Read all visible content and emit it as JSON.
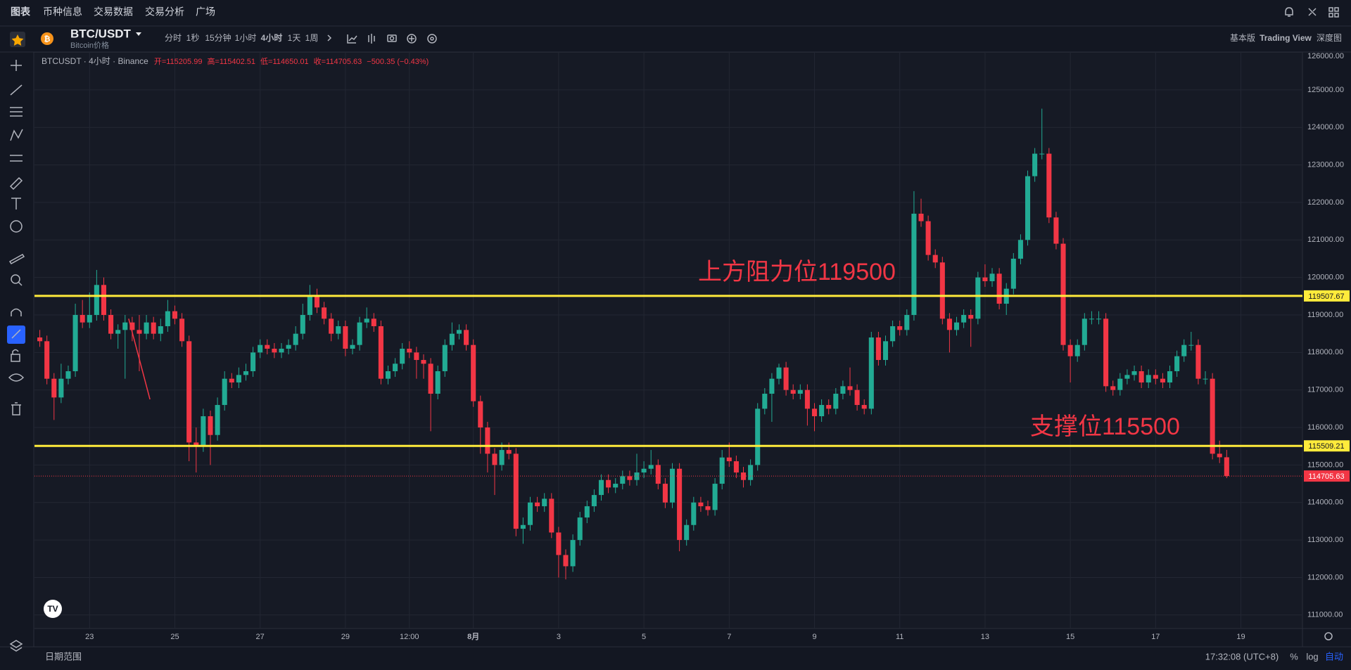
{
  "top_nav": [
    "图表",
    "币种信息",
    "交易数据",
    "交易分析",
    "广场"
  ],
  "symbol": "BTC/USDT",
  "symbol_subtitle": "Bitcoin价格",
  "intervals": [
    "分时",
    "1秒",
    "15分钟",
    "1小时",
    "4小时",
    "1天",
    "1周"
  ],
  "view_modes": [
    "基本版",
    "Trading View",
    "深度图"
  ],
  "legend": {
    "symbol_line": "BTCUSDT · 4小时 · Binance",
    "ohlc": [
      "开=115205.99",
      "高=115402.51",
      "低=114650.01",
      "收=114705.63"
    ],
    "change": "−500.35 (−0.43%)"
  },
  "bottom_bar": {
    "date_range": "日期范围",
    "clock": "17:32:08 (UTC+8)",
    "buttons": [
      "%",
      "log",
      "自动"
    ]
  },
  "chart_data": {
    "type": "candlestick",
    "up_color": "#22ab94",
    "down_color": "#f23645",
    "grid": true,
    "xlim": [
      -0.75,
      177.66
    ],
    "xticks": [
      {
        "value": 7,
        "label": "23"
      },
      {
        "value": 19,
        "label": "25"
      },
      {
        "value": 31,
        "label": "27"
      },
      {
        "value": 43,
        "label": "29"
      },
      {
        "value": 52,
        "label": "12:00"
      },
      {
        "value": 61,
        "label": "8月"
      },
      {
        "value": 73,
        "label": "3"
      },
      {
        "value": 85,
        "label": "5"
      },
      {
        "value": 97,
        "label": "7"
      },
      {
        "value": 109,
        "label": "9"
      },
      {
        "value": 121,
        "label": "11"
      },
      {
        "value": 133,
        "label": "13"
      },
      {
        "value": 145,
        "label": "15"
      },
      {
        "value": 157,
        "label": "17"
      },
      {
        "value": 169,
        "label": "19"
      }
    ],
    "ylim": [
      110640,
      126010
    ],
    "yticks": [
      {
        "value": 111000,
        "label": "111000.00"
      },
      {
        "value": 112000,
        "label": "112000.00"
      },
      {
        "value": 113000,
        "label": "113000.00"
      },
      {
        "value": 114000,
        "label": "114000.00"
      },
      {
        "value": 115000,
        "label": "115000.00"
      },
      {
        "value": 116000,
        "label": "116000.00"
      },
      {
        "value": 117000,
        "label": "117000.00"
      },
      {
        "value": 118000,
        "label": "118000.00"
      },
      {
        "value": 119000,
        "label": "119000.00"
      },
      {
        "value": 120000,
        "label": "120000.00"
      },
      {
        "value": 121000,
        "label": "121000.00"
      },
      {
        "value": 122000,
        "label": "122000.00"
      },
      {
        "value": 123000,
        "label": "123000.00"
      },
      {
        "value": 124000,
        "label": "124000.00"
      },
      {
        "value": 125000,
        "label": "125000.00"
      },
      {
        "value": 126000,
        "label": "126000.00"
      }
    ],
    "hlines": [
      {
        "value": 119507.67,
        "color": "#ffeb3b"
      },
      {
        "value": 115509.21,
        "color": "#ffeb3b"
      }
    ],
    "last_price": 114705.63,
    "annotations": [
      "上方阻力位119500",
      "支撑位115500"
    ],
    "candles": [
      [
        118400,
        118600,
        118150,
        118300
      ],
      [
        118300,
        118450,
        117150,
        117300
      ],
      [
        117300,
        117450,
        116200,
        116800
      ],
      [
        116800,
        117700,
        116650,
        117300
      ],
      [
        117300,
        117650,
        117150,
        117500
      ],
      [
        117500,
        119300,
        117350,
        119000
      ],
      [
        119000,
        119400,
        118650,
        118800
      ],
      [
        118800,
        119600,
        118650,
        119000
      ],
      [
        119000,
        120200,
        118850,
        119800
      ],
      [
        119800,
        120000,
        118850,
        119000
      ],
      [
        119000,
        119150,
        118350,
        118500
      ],
      [
        118500,
        118750,
        118100,
        118600
      ],
      [
        118600,
        119000,
        117300,
        118800
      ],
      [
        118800,
        118950,
        118300,
        118600
      ],
      [
        118600,
        119000,
        117500,
        118500
      ],
      [
        118500,
        119000,
        118350,
        118800
      ],
      [
        118800,
        118950,
        118350,
        118500
      ],
      [
        118500,
        118900,
        118300,
        118700
      ],
      [
        118700,
        119400,
        118550,
        119100
      ],
      [
        119100,
        119250,
        118750,
        118900
      ],
      [
        118900,
        119050,
        118150,
        118300
      ],
      [
        118300,
        118450,
        115100,
        115600
      ],
      [
        115600,
        116000,
        114800,
        115500
      ],
      [
        115500,
        116500,
        115350,
        116300
      ],
      [
        116300,
        116450,
        115000,
        115800
      ],
      [
        115800,
        116800,
        115650,
        116600
      ],
      [
        116600,
        117500,
        116450,
        117300
      ],
      [
        117300,
        117450,
        117050,
        117200
      ],
      [
        117200,
        117600,
        117050,
        117400
      ],
      [
        117400,
        117700,
        117250,
        117500
      ],
      [
        117500,
        118150,
        117350,
        118000
      ],
      [
        118000,
        118350,
        117850,
        118200
      ],
      [
        118200,
        118350,
        117950,
        118100
      ],
      [
        118100,
        118250,
        117850,
        118000
      ],
      [
        118000,
        118250,
        117850,
        118100
      ],
      [
        118100,
        118350,
        117950,
        118200
      ],
      [
        118200,
        118700,
        118050,
        118500
      ],
      [
        118500,
        119300,
        118350,
        119000
      ],
      [
        119000,
        119800,
        118850,
        119500
      ],
      [
        119500,
        119700,
        119050,
        119200
      ],
      [
        119200,
        119350,
        118750,
        118900
      ],
      [
        118900,
        119050,
        118300,
        118500
      ],
      [
        118500,
        118850,
        118350,
        118700
      ],
      [
        118700,
        118850,
        117900,
        118100
      ],
      [
        118100,
        118350,
        117950,
        118200
      ],
      [
        118200,
        118950,
        118050,
        118800
      ],
      [
        118800,
        119200,
        118650,
        118900
      ],
      [
        118900,
        119050,
        118550,
        118700
      ],
      [
        118700,
        118850,
        117150,
        117300
      ],
      [
        117300,
        117650,
        117150,
        117500
      ],
      [
        117500,
        117850,
        117350,
        117700
      ],
      [
        117700,
        118250,
        117550,
        118100
      ],
      [
        118100,
        118300,
        117850,
        118000
      ],
      [
        118000,
        118150,
        117300,
        117800
      ],
      [
        117800,
        117950,
        117300,
        117700
      ],
      [
        117700,
        117850,
        115900,
        116900
      ],
      [
        116900,
        117650,
        116750,
        117500
      ],
      [
        117500,
        118350,
        117350,
        118200
      ],
      [
        118200,
        118800,
        118050,
        118500
      ],
      [
        118500,
        118750,
        118350,
        118600
      ],
      [
        118600,
        118750,
        118050,
        118200
      ],
      [
        118200,
        118350,
        116550,
        116700
      ],
      [
        116700,
        116850,
        115300,
        116000
      ],
      [
        116000,
        116150,
        114800,
        115300
      ],
      [
        115300,
        115450,
        114200,
        115000
      ],
      [
        115000,
        115600,
        114850,
        115400
      ],
      [
        115400,
        115600,
        115150,
        115300
      ],
      [
        115300,
        115450,
        113100,
        113300
      ],
      [
        113300,
        113600,
        112900,
        113400
      ],
      [
        113400,
        114150,
        113250,
        114000
      ],
      [
        114000,
        114150,
        113750,
        113900
      ],
      [
        113900,
        114250,
        113750,
        114100
      ],
      [
        114100,
        114250,
        113050,
        113200
      ],
      [
        113200,
        113350,
        112000,
        112600
      ],
      [
        112600,
        112750,
        111950,
        112300
      ],
      [
        112300,
        113150,
        112150,
        113000
      ],
      [
        113000,
        113750,
        112850,
        113600
      ],
      [
        113600,
        114050,
        113450,
        113900
      ],
      [
        113900,
        114350,
        113750,
        114200
      ],
      [
        114200,
        114750,
        114050,
        114600
      ],
      [
        114600,
        114750,
        114250,
        114400
      ],
      [
        114400,
        114650,
        114250,
        114500
      ],
      [
        114500,
        114850,
        114350,
        114700
      ],
      [
        114700,
        114850,
        114450,
        114600
      ],
      [
        114600,
        115300,
        114450,
        114800
      ],
      [
        114800,
        115100,
        114650,
        114900
      ],
      [
        114900,
        115400,
        114750,
        115000
      ],
      [
        115000,
        115150,
        114350,
        114500
      ],
      [
        114500,
        114650,
        113850,
        114000
      ],
      [
        114000,
        115050,
        113850,
        114900
      ],
      [
        114900,
        115050,
        112700,
        113000
      ],
      [
        113000,
        113550,
        112850,
        113400
      ],
      [
        113400,
        114150,
        113250,
        114000
      ],
      [
        114000,
        114150,
        113750,
        113900
      ],
      [
        113900,
        114050,
        113650,
        113800
      ],
      [
        113800,
        114650,
        113650,
        114500
      ],
      [
        114500,
        115400,
        114350,
        115200
      ],
      [
        115200,
        115600,
        114950,
        115100
      ],
      [
        115100,
        115250,
        114650,
        114800
      ],
      [
        114800,
        114950,
        114400,
        114600
      ],
      [
        114600,
        115150,
        114450,
        115000
      ],
      [
        115000,
        116650,
        114850,
        116500
      ],
      [
        116500,
        117050,
        116350,
        116900
      ],
      [
        116900,
        117450,
        116150,
        117300
      ],
      [
        117300,
        117700,
        117150,
        117600
      ],
      [
        117600,
        117750,
        116850,
        117000
      ],
      [
        117000,
        117150,
        116750,
        116900
      ],
      [
        116900,
        117150,
        116750,
        117000
      ],
      [
        117000,
        117150,
        116050,
        116500
      ],
      [
        116500,
        116650,
        115900,
        116300
      ],
      [
        116300,
        116750,
        116150,
        116600
      ],
      [
        116600,
        116750,
        116350,
        116500
      ],
      [
        116500,
        117050,
        116350,
        116900
      ],
      [
        116900,
        117250,
        116750,
        117100
      ],
      [
        117100,
        117600,
        116850,
        117000
      ],
      [
        117000,
        117150,
        116450,
        116600
      ],
      [
        116600,
        116750,
        116350,
        116500
      ],
      [
        116500,
        118550,
        116350,
        118400
      ],
      [
        118400,
        118550,
        117650,
        117800
      ],
      [
        117800,
        118450,
        117650,
        118300
      ],
      [
        118300,
        118850,
        118150,
        118700
      ],
      [
        118700,
        118850,
        118450,
        118600
      ],
      [
        118600,
        119150,
        118450,
        119000
      ],
      [
        119000,
        122300,
        118850,
        121700
      ],
      [
        121700,
        122100,
        121350,
        121500
      ],
      [
        121500,
        121650,
        120450,
        120600
      ],
      [
        120600,
        120750,
        120250,
        120400
      ],
      [
        120400,
        120550,
        118750,
        118900
      ],
      [
        118900,
        119050,
        118000,
        118600
      ],
      [
        118600,
        118950,
        118450,
        118800
      ],
      [
        118800,
        119150,
        118650,
        119000
      ],
      [
        119000,
        119150,
        118150,
        118900
      ],
      [
        118900,
        120150,
        118750,
        120000
      ],
      [
        120000,
        120350,
        119750,
        119900
      ],
      [
        119900,
        120250,
        119750,
        120100
      ],
      [
        120100,
        120250,
        119150,
        119300
      ],
      [
        119300,
        119850,
        119000,
        119700
      ],
      [
        119700,
        120650,
        119550,
        120500
      ],
      [
        120500,
        121150,
        120350,
        121000
      ],
      [
        121000,
        122850,
        120850,
        122700
      ],
      [
        122700,
        123450,
        122550,
        123300
      ],
      [
        123300,
        124500,
        123150,
        123300
      ],
      [
        123300,
        123450,
        121450,
        121600
      ],
      [
        121600,
        121750,
        120750,
        120900
      ],
      [
        120900,
        121050,
        118050,
        118200
      ],
      [
        118200,
        118350,
        117200,
        117900
      ],
      [
        117900,
        118350,
        117750,
        118200
      ],
      [
        118200,
        119050,
        118050,
        118900
      ],
      [
        118900,
        119100,
        118750,
        118900
      ],
      [
        118900,
        119100,
        118750,
        118900
      ],
      [
        118900,
        119050,
        116950,
        117100
      ],
      [
        117100,
        117250,
        116850,
        117000
      ],
      [
        117000,
        117450,
        116850,
        117300
      ],
      [
        117300,
        117550,
        117150,
        117400
      ],
      [
        117400,
        117650,
        117250,
        117500
      ],
      [
        117500,
        117650,
        117050,
        117200
      ],
      [
        117200,
        117550,
        117050,
        117400
      ],
      [
        117400,
        117550,
        117150,
        117300
      ],
      [
        117300,
        117450,
        117050,
        117200
      ],
      [
        117200,
        117650,
        117050,
        117500
      ],
      [
        117500,
        118050,
        117350,
        117900
      ],
      [
        117900,
        118350,
        117750,
        118200
      ],
      [
        118200,
        118550,
        118050,
        118200
      ],
      [
        118200,
        118350,
        117150,
        117300
      ],
      [
        117300,
        117500,
        117150,
        117300
      ],
      [
        117300,
        117450,
        115150,
        115300
      ],
      [
        115300,
        115650,
        115050,
        115205.99
      ],
      [
        115205.99,
        115402.51,
        114650.01,
        114705.63
      ]
    ]
  }
}
